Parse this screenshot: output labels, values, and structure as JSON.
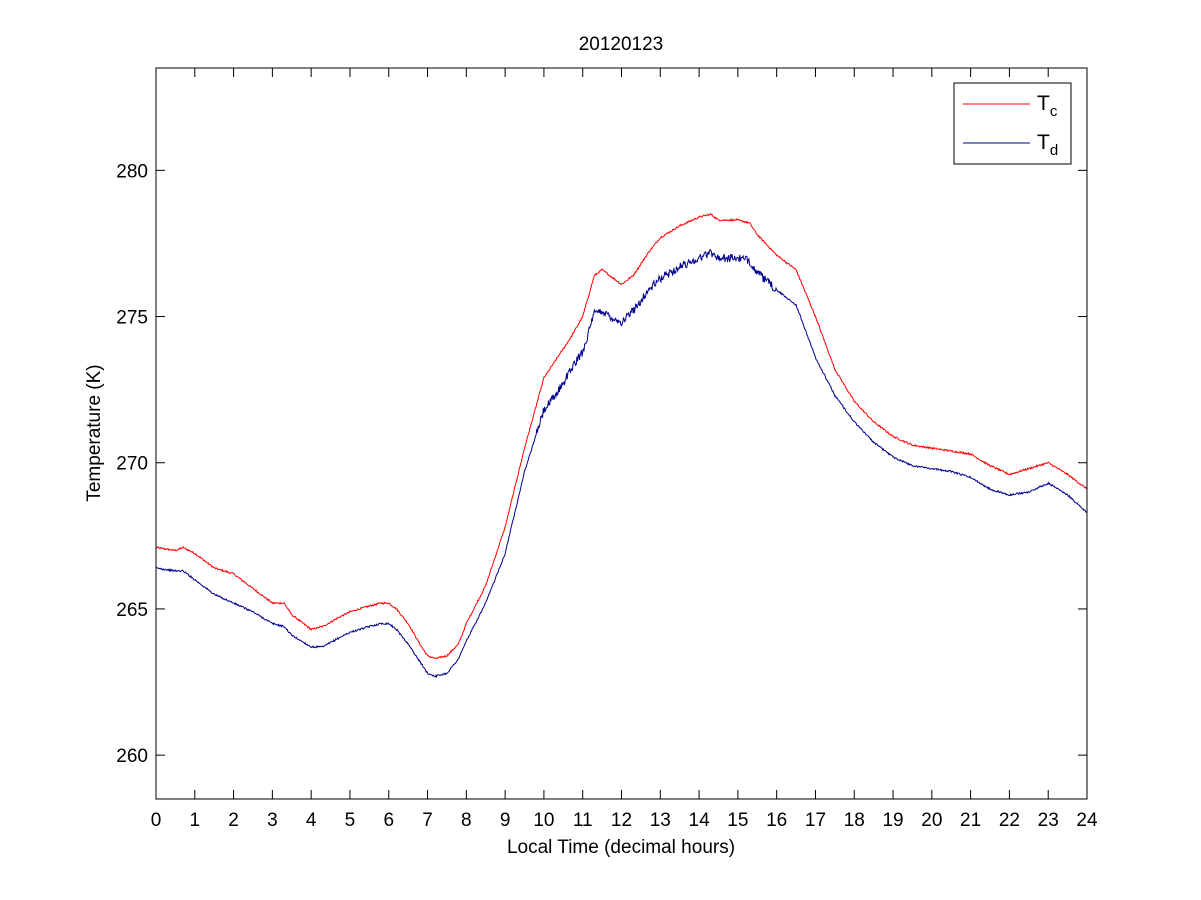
{
  "chart_data": {
    "type": "line",
    "title": "20120123",
    "xlabel": "Local Time (decimal hours)",
    "ylabel": "Temperature (K)",
    "xlim": [
      0,
      24
    ],
    "ylim": [
      258.5,
      283.5
    ],
    "xticks": [
      0,
      1,
      2,
      3,
      4,
      5,
      6,
      7,
      8,
      9,
      10,
      11,
      12,
      13,
      14,
      15,
      16,
      17,
      18,
      19,
      20,
      21,
      22,
      23,
      24
    ],
    "yticks": [
      260,
      265,
      270,
      275,
      280
    ],
    "grid": false,
    "legend_position": "top-right",
    "series": [
      {
        "name": "T",
        "subscript": "c",
        "color": "#ff0000",
        "x": [
          0,
          0.5,
          0.7,
          1,
          1.5,
          2,
          2.5,
          3,
          3.3,
          3.5,
          4,
          4.3,
          4.7,
          5,
          5.5,
          5.8,
          6,
          6.2,
          6.5,
          6.8,
          7,
          7.2,
          7.5,
          7.8,
          8,
          8.5,
          9,
          9.5,
          10,
          10.3,
          10.7,
          11,
          11.3,
          11.5,
          11.7,
          12,
          12.3,
          12.7,
          13,
          13.5,
          14,
          14.3,
          14.5,
          15,
          15.3,
          15.5,
          16,
          16.5,
          17,
          17.5,
          18,
          18.5,
          19,
          19.5,
          20,
          20.5,
          21,
          21.5,
          22,
          22.5,
          23,
          23.5,
          24
        ],
        "y": [
          267.1,
          267.0,
          267.1,
          266.9,
          266.4,
          266.2,
          265.7,
          265.2,
          265.2,
          264.8,
          264.3,
          264.4,
          264.7,
          264.9,
          265.1,
          265.2,
          265.2,
          265.0,
          264.5,
          263.8,
          263.4,
          263.3,
          263.4,
          263.8,
          264.5,
          265.8,
          267.8,
          270.5,
          272.9,
          273.5,
          274.3,
          275.0,
          276.4,
          276.6,
          276.4,
          276.1,
          276.4,
          277.2,
          277.7,
          278.1,
          278.4,
          278.5,
          278.3,
          278.3,
          278.2,
          277.8,
          277.1,
          276.6,
          275.0,
          273.2,
          272.1,
          271.4,
          270.9,
          270.6,
          270.5,
          270.4,
          270.3,
          269.9,
          269.6,
          269.8,
          270.0,
          269.6,
          269.1
        ]
      },
      {
        "name": "T",
        "subscript": "d",
        "color": "#00008b",
        "x": [
          0,
          0.5,
          0.7,
          1,
          1.5,
          2,
          2.5,
          3,
          3.3,
          3.5,
          4,
          4.3,
          4.7,
          5,
          5.5,
          5.8,
          6,
          6.2,
          6.5,
          6.8,
          7,
          7.2,
          7.5,
          7.8,
          8,
          8.5,
          9,
          9.5,
          10,
          10.3,
          10.7,
          11,
          11.3,
          11.5,
          11.7,
          12,
          12.3,
          12.7,
          13,
          13.5,
          14,
          14.3,
          14.5,
          15,
          15.3,
          15.5,
          16,
          16.5,
          17,
          17.5,
          18,
          18.5,
          19,
          19.5,
          20,
          20.5,
          21,
          21.5,
          22,
          22.5,
          23,
          23.5,
          24
        ],
        "y": [
          266.4,
          266.3,
          266.3,
          266.0,
          265.5,
          265.2,
          264.9,
          264.5,
          264.4,
          264.1,
          263.7,
          263.7,
          264.0,
          264.2,
          264.4,
          264.5,
          264.5,
          264.3,
          263.8,
          263.2,
          262.8,
          262.7,
          262.8,
          263.3,
          263.9,
          265.2,
          266.9,
          269.7,
          271.8,
          272.3,
          273.2,
          273.8,
          275.1,
          275.2,
          275.0,
          274.8,
          275.2,
          275.9,
          276.3,
          276.7,
          277.0,
          277.2,
          277.0,
          277.0,
          276.9,
          276.5,
          275.9,
          275.4,
          273.6,
          272.3,
          271.4,
          270.7,
          270.2,
          269.9,
          269.8,
          269.7,
          269.5,
          269.1,
          268.9,
          269.0,
          269.3,
          268.9,
          268.3
        ]
      }
    ]
  }
}
